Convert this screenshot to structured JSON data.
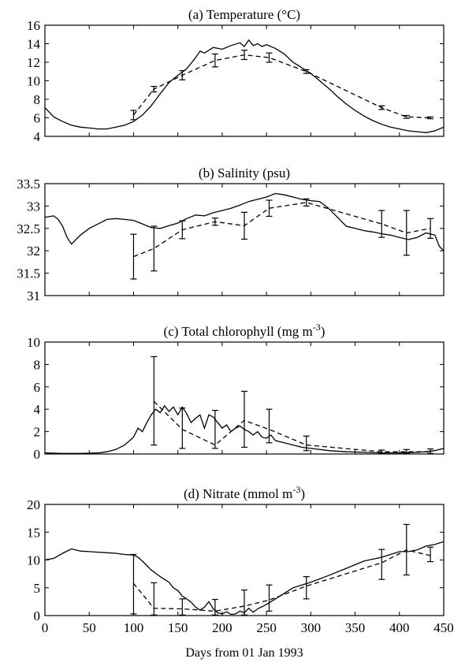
{
  "figure": {
    "xlabel": "Days from 01 Jan 1993",
    "xlim": [
      0,
      450
    ],
    "xticks": [
      0,
      50,
      100,
      150,
      200,
      250,
      300,
      350,
      400,
      450
    ]
  },
  "chart_data": [
    {
      "type": "line",
      "title": "(a) Temperature (°C)",
      "xlabel": "Days from 01 Jan 1993",
      "ylabel": "",
      "xlim": [
        0,
        450
      ],
      "ylim": [
        4,
        16
      ],
      "yticks": [
        4,
        6,
        8,
        10,
        12,
        14,
        16
      ],
      "grid": false,
      "series": [
        {
          "style": "solid",
          "x": [
            0,
            10,
            20,
            30,
            40,
            50,
            60,
            70,
            80,
            90,
            100,
            110,
            120,
            130,
            140,
            150,
            160,
            170,
            175,
            180,
            190,
            200,
            210,
            220,
            225,
            230,
            235,
            240,
            245,
            250,
            260,
            270,
            280,
            290,
            300,
            310,
            320,
            330,
            340,
            350,
            360,
            370,
            380,
            390,
            400,
            410,
            420,
            430,
            440,
            450
          ],
          "y": [
            7.1,
            6.1,
            5.6,
            5.2,
            5.0,
            4.9,
            4.8,
            4.8,
            5.0,
            5.2,
            5.6,
            6.3,
            7.3,
            8.6,
            9.8,
            10.6,
            11.3,
            12.5,
            13.2,
            13.0,
            13.6,
            13.4,
            13.8,
            14.1,
            13.7,
            14.4,
            13.8,
            14.0,
            13.7,
            13.9,
            13.5,
            12.9,
            12.0,
            11.4,
            10.8,
            10.0,
            9.2,
            8.3,
            7.5,
            6.8,
            6.2,
            5.7,
            5.3,
            5.0,
            4.8,
            4.6,
            4.5,
            4.4,
            4.6,
            5.0
          ]
        },
        {
          "style": "dashed",
          "x": [
            100,
            123,
            155,
            192,
            225,
            253,
            295,
            380,
            408,
            435
          ],
          "y": [
            6.3,
            9.1,
            10.6,
            12.2,
            12.8,
            12.5,
            11.0,
            7.1,
            6.1,
            6.0
          ]
        }
      ],
      "error_bars": {
        "x": [
          100,
          123,
          155,
          192,
          225,
          253,
          295,
          380,
          408,
          435
        ],
        "y": [
          6.3,
          9.1,
          10.6,
          12.2,
          12.8,
          12.5,
          11.0,
          7.1,
          6.1,
          6.0
        ],
        "err": [
          0.5,
          0.3,
          0.5,
          0.7,
          0.5,
          0.5,
          0.2,
          0.2,
          0.15,
          0.1
        ]
      }
    },
    {
      "type": "line",
      "title": "(b) Salinity (psu)",
      "xlabel": "Days from 01 Jan 1993",
      "ylabel": "",
      "xlim": [
        0,
        450
      ],
      "ylim": [
        31,
        33.5
      ],
      "yticks": [
        31,
        31.5,
        32,
        32.5,
        33,
        33.5
      ],
      "grid": false,
      "series": [
        {
          "style": "solid",
          "x": [
            0,
            10,
            15,
            20,
            25,
            30,
            40,
            50,
            60,
            70,
            80,
            90,
            100,
            110,
            120,
            130,
            140,
            150,
            160,
            170,
            180,
            190,
            200,
            210,
            220,
            230,
            240,
            250,
            260,
            270,
            280,
            290,
            300,
            310,
            320,
            330,
            340,
            350,
            360,
            370,
            380,
            390,
            400,
            410,
            420,
            430,
            440,
            445,
            450
          ],
          "y": [
            32.75,
            32.78,
            32.7,
            32.55,
            32.3,
            32.15,
            32.35,
            32.5,
            32.6,
            32.7,
            32.72,
            32.7,
            32.68,
            32.6,
            32.52,
            32.5,
            32.56,
            32.62,
            32.72,
            32.8,
            32.78,
            32.85,
            32.9,
            32.95,
            33.02,
            33.1,
            33.15,
            33.2,
            33.28,
            33.25,
            33.2,
            33.15,
            33.12,
            33.1,
            32.95,
            32.75,
            32.55,
            32.5,
            32.45,
            32.42,
            32.38,
            32.35,
            32.3,
            32.25,
            32.3,
            32.4,
            32.35,
            32.1,
            32.0
          ]
        },
        {
          "style": "dashed",
          "x": [
            100,
            123,
            155,
            192,
            225,
            253,
            295,
            380,
            408,
            435
          ],
          "y": [
            31.87,
            32.05,
            32.47,
            32.65,
            32.56,
            32.95,
            33.08,
            32.6,
            32.4,
            32.5
          ]
        }
      ],
      "error_bars": {
        "x": [
          100,
          123,
          155,
          192,
          225,
          253,
          295,
          380,
          408,
          435
        ],
        "y": [
          31.87,
          32.05,
          32.47,
          32.65,
          32.56,
          32.95,
          33.08,
          32.6,
          32.4,
          32.5
        ],
        "err": [
          0.5,
          0.5,
          0.2,
          0.08,
          0.3,
          0.18,
          0.08,
          0.3,
          0.5,
          0.22
        ]
      }
    },
    {
      "type": "line",
      "title": "(c) Total chlorophyll (mg m",
      "title_sup": "-3",
      "title_end": ")",
      "xlabel": "Days from 01 Jan 1993",
      "ylabel": "",
      "xlim": [
        0,
        450
      ],
      "ylim": [
        0,
        10
      ],
      "yticks": [
        0,
        2,
        4,
        6,
        8,
        10
      ],
      "grid": false,
      "series": [
        {
          "style": "solid",
          "x": [
            0,
            20,
            40,
            60,
            70,
            80,
            90,
            100,
            105,
            110,
            115,
            120,
            125,
            130,
            135,
            140,
            145,
            150,
            155,
            160,
            165,
            170,
            175,
            180,
            185,
            190,
            195,
            200,
            205,
            210,
            215,
            220,
            225,
            230,
            235,
            240,
            245,
            250,
            255,
            260,
            270,
            280,
            290,
            300,
            320,
            340,
            360,
            380,
            400,
            420,
            430,
            440,
            450
          ],
          "y": [
            0.1,
            0.05,
            0.05,
            0.1,
            0.2,
            0.4,
            0.8,
            1.5,
            2.3,
            2.0,
            2.8,
            3.5,
            4.0,
            3.7,
            4.3,
            3.8,
            4.2,
            3.5,
            4.2,
            3.6,
            2.8,
            3.2,
            3.5,
            2.3,
            3.5,
            3.3,
            2.8,
            2.3,
            2.6,
            2.0,
            2.3,
            2.5,
            2.2,
            2.0,
            1.7,
            2.0,
            1.5,
            1.4,
            1.7,
            1.2,
            1.0,
            0.8,
            0.6,
            0.5,
            0.3,
            0.2,
            0.15,
            0.1,
            0.1,
            0.15,
            0.2,
            0.3,
            0.5
          ]
        },
        {
          "style": "dashed",
          "x": [
            123,
            155,
            192,
            225,
            253,
            295,
            380,
            408,
            435
          ],
          "y": [
            4.7,
            2.2,
            0.8,
            3.0,
            2.2,
            0.8,
            0.2,
            0.2,
            0.2
          ]
        }
      ],
      "error_bars": {
        "x": [
          123,
          155,
          192,
          225,
          253,
          295,
          380,
          408,
          435
        ],
        "y": [
          4.7,
          2.3,
          2.2,
          3.0,
          2.5,
          0.8,
          0.2,
          0.2,
          0.2
        ],
        "lo": [
          0.8,
          0.5,
          0.5,
          0.6,
          1.0,
          0.3,
          0.05,
          0.05,
          0.05
        ],
        "hi": [
          8.7,
          4.1,
          3.9,
          5.6,
          4.0,
          1.6,
          0.35,
          0.4,
          0.45
        ]
      }
    },
    {
      "type": "line",
      "title": "(d) Nitrate (mmol m",
      "title_sup": "-3",
      "title_end": ")",
      "xlabel": "Days from 01 Jan 1993",
      "ylabel": "",
      "xlim": [
        0,
        450
      ],
      "ylim": [
        0,
        20
      ],
      "yticks": [
        0,
        5,
        10,
        15,
        20
      ],
      "grid": false,
      "series": [
        {
          "style": "solid",
          "x": [
            0,
            10,
            20,
            30,
            40,
            50,
            60,
            70,
            80,
            90,
            100,
            105,
            110,
            115,
            120,
            125,
            130,
            135,
            140,
            145,
            150,
            155,
            160,
            165,
            170,
            175,
            180,
            185,
            190,
            195,
            200,
            205,
            210,
            215,
            220,
            225,
            230,
            235,
            240,
            250,
            260,
            270,
            280,
            290,
            300,
            320,
            340,
            360,
            380,
            400,
            410,
            420,
            430,
            440,
            450
          ],
          "y": [
            10,
            10.3,
            11.2,
            12.0,
            11.6,
            11.5,
            11.4,
            11.3,
            11.2,
            11.0,
            10.9,
            10.5,
            9.8,
            9.0,
            8.2,
            7.6,
            7.0,
            6.5,
            6.0,
            5.0,
            4.5,
            3.5,
            3.0,
            2.4,
            1.5,
            1.0,
            1.5,
            2.5,
            1.2,
            0.5,
            0.3,
            0.7,
            0.2,
            0.3,
            0.8,
            0.5,
            1.3,
            0.6,
            1.2,
            2.0,
            3.0,
            4.0,
            5.0,
            5.5,
            6.0,
            7.2,
            8.5,
            9.8,
            10.5,
            11.5,
            11.5,
            11.8,
            12.5,
            12.8,
            13.3
          ]
        },
        {
          "style": "dashed",
          "x": [
            100,
            123,
            155,
            192,
            225,
            253,
            295,
            380,
            408,
            435
          ],
          "y": [
            5.8,
            1.3,
            1.2,
            0.8,
            1.7,
            2.8,
            5.3,
            9.5,
            11.8,
            10.8
          ]
        }
      ],
      "error_bars": {
        "x": [
          100,
          123,
          155,
          192,
          225,
          253,
          295,
          380,
          408,
          435
        ],
        "y": [
          5.8,
          3.0,
          1.5,
          1.5,
          2.3,
          3.2,
          5.3,
          9.3,
          11.8,
          10.8
        ],
        "lo": [
          0.3,
          0.1,
          0.1,
          0.1,
          0.1,
          0.8,
          3.0,
          6.5,
          7.3,
          9.7
        ],
        "hi": [
          11.0,
          5.9,
          3.0,
          2.9,
          4.6,
          5.5,
          7.0,
          11.9,
          16.4,
          12.3
        ]
      }
    }
  ]
}
